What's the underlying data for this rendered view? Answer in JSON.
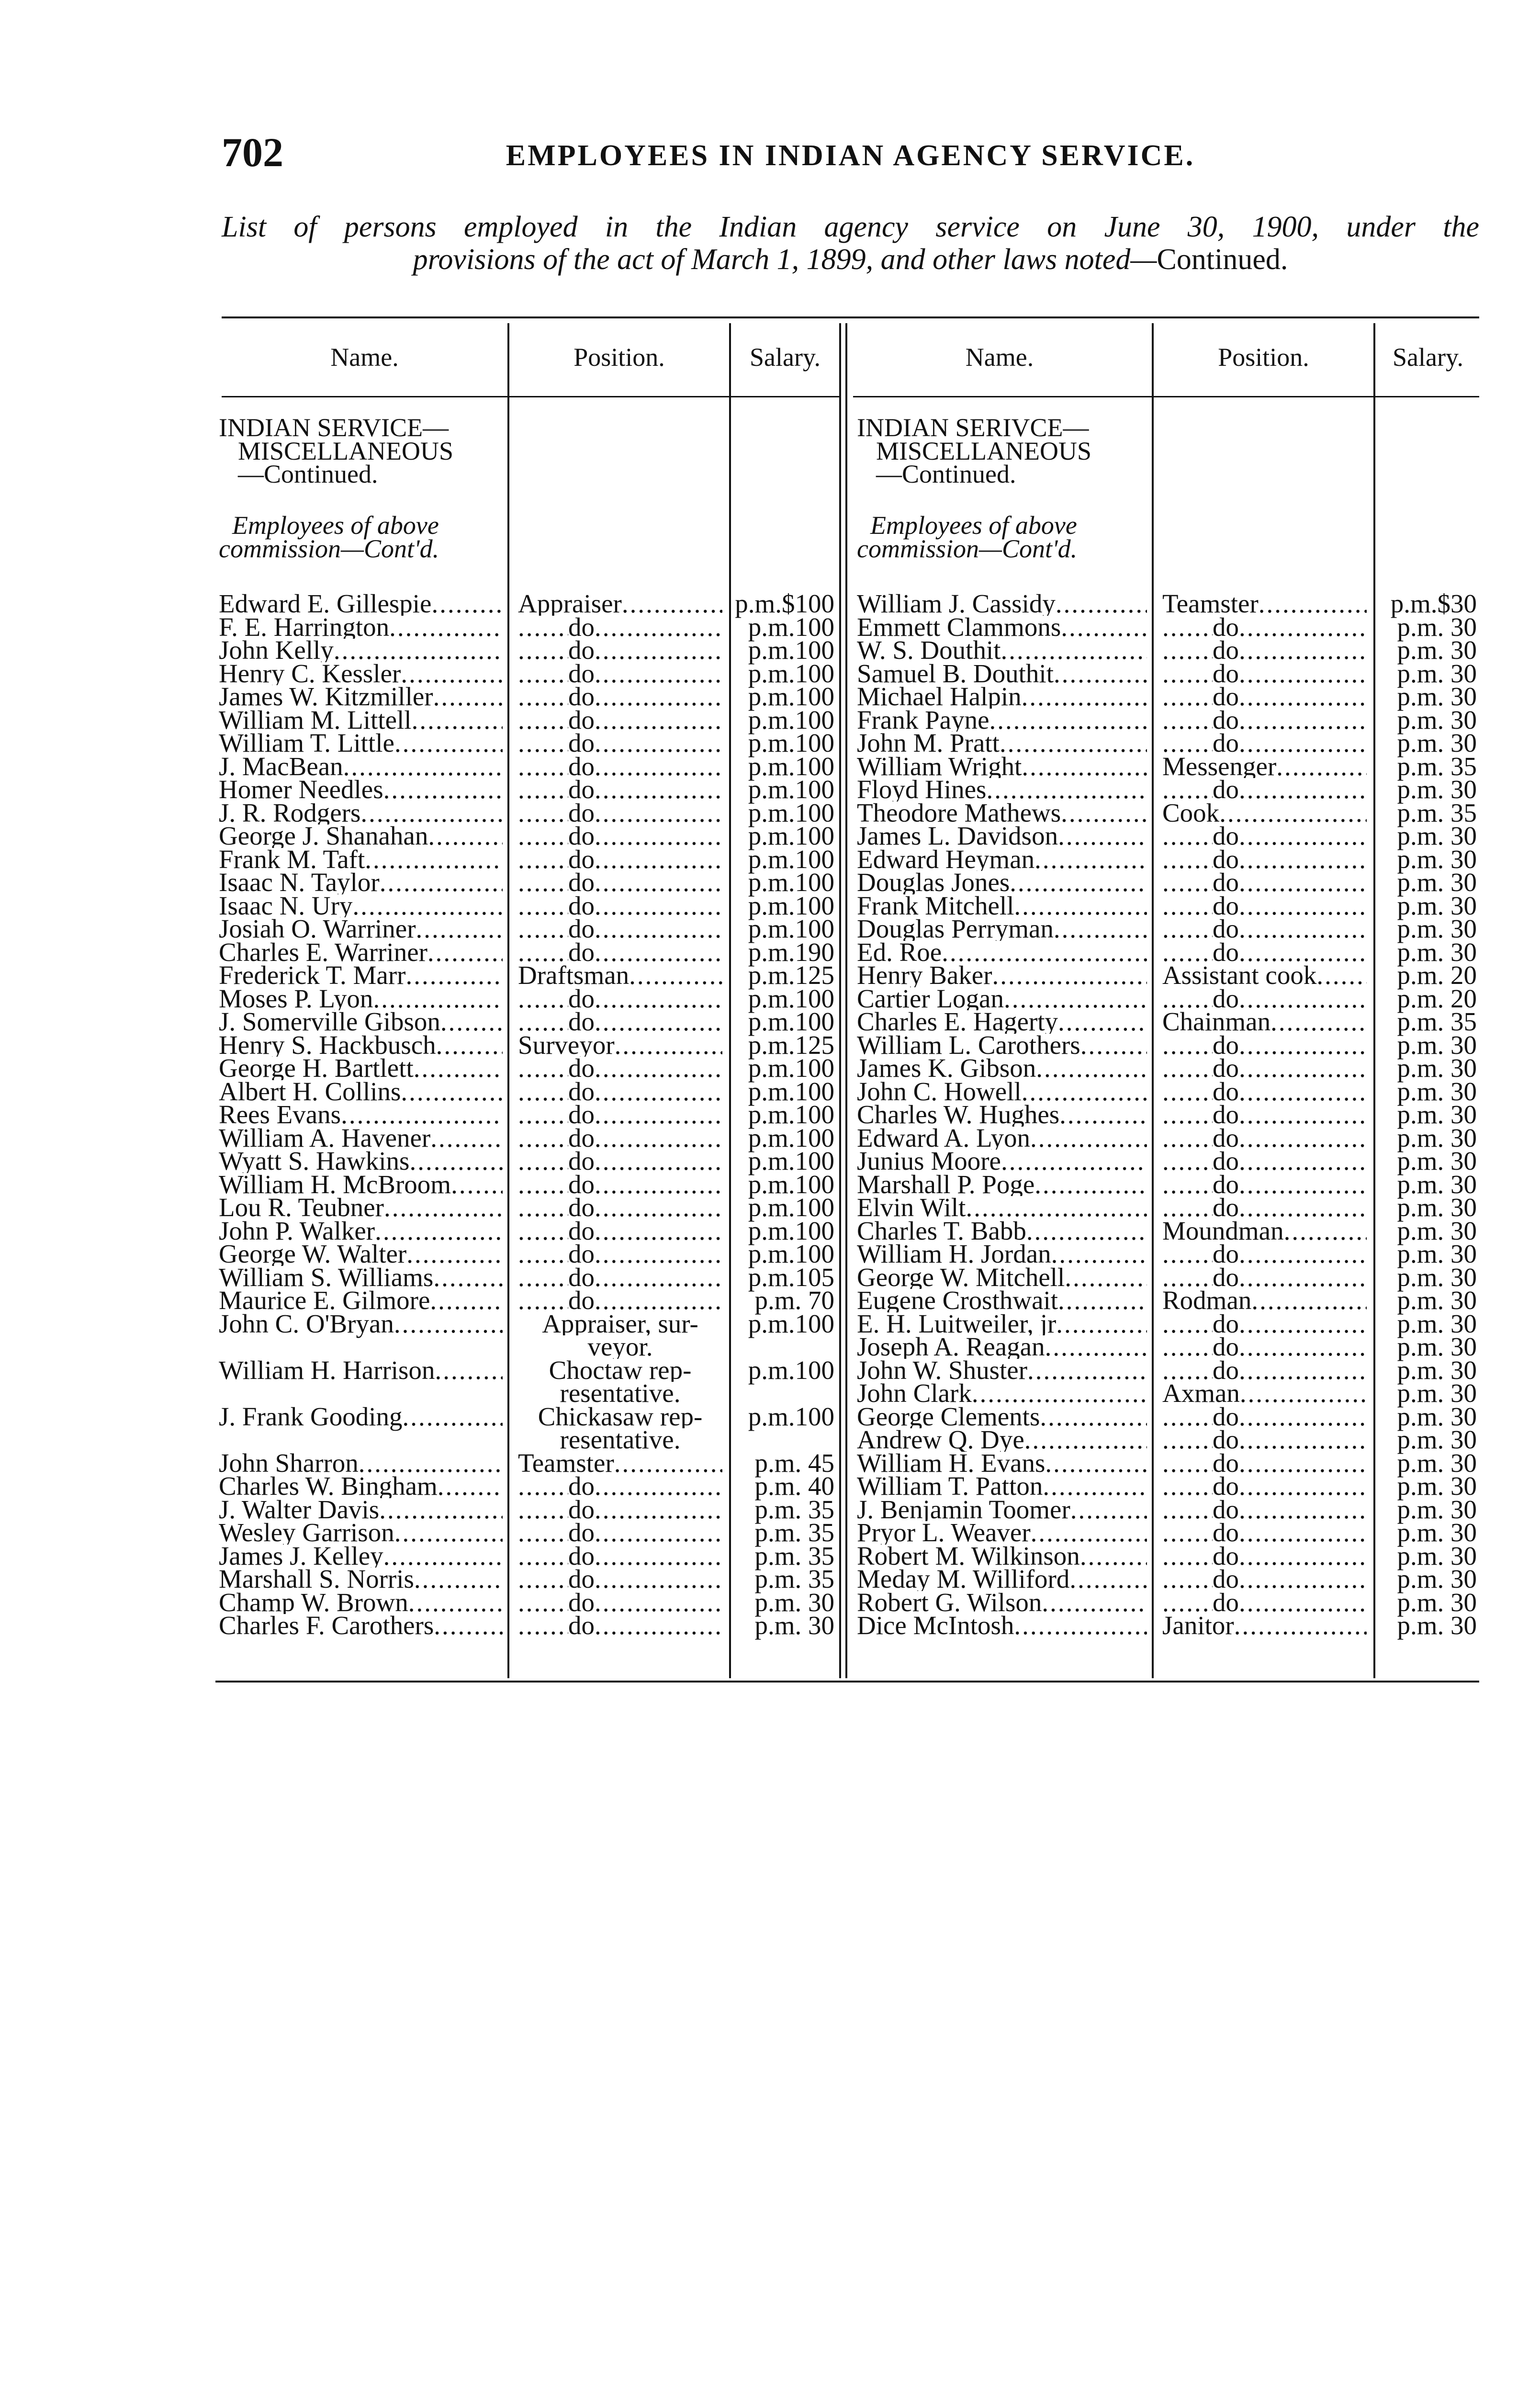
{
  "page_number": "702",
  "running_head": "EMPLOYEES IN INDIAN AGENCY SERVICE.",
  "caption": {
    "line1": "List of persons employed in the Indian agency service on June 30, 1900, under the",
    "line2_italic": "provisions of the act of March 1, 1899, and other laws noted—",
    "line2_roman": "Continued."
  },
  "columns": [
    "Name.",
    "Position.",
    "Salary."
  ],
  "left": {
    "section": [
      "INDIAN SERVICE—",
      "MISCELLANEOUS",
      "—Continued."
    ],
    "subsection": [
      "Employees of above",
      "commission—Cont'd."
    ],
    "rows": [
      {
        "name": "Edward E. Gillespie",
        "position": [
          "Appraiser"
        ],
        "salary": "p.m.$100"
      },
      {
        "name": "F. E. Harrington",
        "position": [
          "do"
        ],
        "salary": "p.m.100"
      },
      {
        "name": "John Kelly",
        "position": [
          "do"
        ],
        "salary": "p.m.100"
      },
      {
        "name": "Henry C. Kessler",
        "position": [
          "do"
        ],
        "salary": "p.m.100"
      },
      {
        "name": "James W. Kitzmiller",
        "position": [
          "do"
        ],
        "salary": "p.m.100"
      },
      {
        "name": "William M. Littell",
        "position": [
          "do"
        ],
        "salary": "p.m.100"
      },
      {
        "name": "William T. Little",
        "position": [
          "do"
        ],
        "salary": "p.m.100"
      },
      {
        "name": "J. MacBean",
        "position": [
          "do"
        ],
        "salary": "p.m.100"
      },
      {
        "name": "Homer Needles",
        "position": [
          "do"
        ],
        "salary": "p.m.100"
      },
      {
        "name": "J. R. Rodgers",
        "position": [
          "do"
        ],
        "salary": "p.m.100"
      },
      {
        "name": "George J. Shanahan",
        "position": [
          "do"
        ],
        "salary": "p.m.100"
      },
      {
        "name": "Frank M. Taft",
        "position": [
          "do"
        ],
        "salary": "p.m.100"
      },
      {
        "name": "Isaac N. Taylor",
        "position": [
          "do"
        ],
        "salary": "p.m.100"
      },
      {
        "name": "Isaac N. Ury",
        "position": [
          "do"
        ],
        "salary": "p.m.100"
      },
      {
        "name": "Josiah O. Warriner",
        "position": [
          "do"
        ],
        "salary": "p.m.100"
      },
      {
        "name": "Charles E. Warriner",
        "position": [
          "do"
        ],
        "salary": "p.m.190"
      },
      {
        "name": "Frederick T. Marr",
        "position": [
          "Draftsman"
        ],
        "salary": "p.m.125"
      },
      {
        "name": "Moses P. Lyon",
        "position": [
          "do"
        ],
        "salary": "p.m.100"
      },
      {
        "name": "J. Somerville Gibson",
        "position": [
          "do"
        ],
        "salary": "p.m.100"
      },
      {
        "name": "Henry S. Hackbusch",
        "position": [
          "Surveyor"
        ],
        "salary": "p.m.125"
      },
      {
        "name": "George H. Bartlett",
        "position": [
          "do"
        ],
        "salary": "p.m.100"
      },
      {
        "name": "Albert H. Collins",
        "position": [
          "do"
        ],
        "salary": "p.m.100"
      },
      {
        "name": "Rees Evans",
        "position": [
          "do"
        ],
        "salary": "p.m.100"
      },
      {
        "name": "William A. Havener",
        "position": [
          "do"
        ],
        "salary": "p.m.100"
      },
      {
        "name": "Wyatt S. Hawkins",
        "position": [
          "do"
        ],
        "salary": "p.m.100"
      },
      {
        "name": "William H. McBroom",
        "position": [
          "do"
        ],
        "salary": "p.m.100"
      },
      {
        "name": "Lou R. Teubner",
        "position": [
          "do"
        ],
        "salary": "p.m.100"
      },
      {
        "name": "John P. Walker",
        "position": [
          "do"
        ],
        "salary": "p.m.100"
      },
      {
        "name": "George W. Walter",
        "position": [
          "do"
        ],
        "salary": "p.m.100"
      },
      {
        "name": "William S. Williams",
        "position": [
          "do"
        ],
        "salary": "p.m.105"
      },
      {
        "name": "Maurice E. Gilmore",
        "position": [
          "do"
        ],
        "salary": "p.m. 70"
      },
      {
        "name": "John C. O'Bryan",
        "position": [
          "Appraiser, sur-",
          "veyor."
        ],
        "salary": "p.m.100"
      },
      {
        "name": "William H. Harrison",
        "position": [
          "Choctaw rep-",
          "resentative."
        ],
        "salary": "p.m.100"
      },
      {
        "name": "J. Frank Gooding",
        "position": [
          "Chickasaw rep-",
          "resentative."
        ],
        "salary": "p.m.100"
      },
      {
        "name": "John Sharron",
        "position": [
          "Teamster"
        ],
        "salary": "p.m. 45"
      },
      {
        "name": "Charles W. Bingham",
        "position": [
          "do"
        ],
        "salary": "p.m. 40"
      },
      {
        "name": "J. Walter Davis",
        "position": [
          "do"
        ],
        "salary": "p.m. 35"
      },
      {
        "name": "Wesley Garrison",
        "position": [
          "do"
        ],
        "salary": "p.m. 35"
      },
      {
        "name": "James J. Kelley",
        "position": [
          "do"
        ],
        "salary": "p.m. 35"
      },
      {
        "name": "Marshall S. Norris",
        "position": [
          "do"
        ],
        "salary": "p.m. 35"
      },
      {
        "name": "Champ W. Brown",
        "position": [
          "do"
        ],
        "salary": "p.m. 30"
      },
      {
        "name": "Charles F. Carothers",
        "position": [
          "do"
        ],
        "salary": "p.m. 30"
      }
    ]
  },
  "right": {
    "section": [
      "INDIAN SERIVCE—",
      "MISCELLANEOUS",
      "—Continued."
    ],
    "subsection": [
      "Employees of above",
      "commission—Cont'd."
    ],
    "rows": [
      {
        "name": "William J. Cassidy",
        "position": [
          "Teamster"
        ],
        "salary": "p.m.$30"
      },
      {
        "name": "Emmett Clammons",
        "position": [
          "do"
        ],
        "salary": "p.m. 30"
      },
      {
        "name": "W. S. Douthit",
        "position": [
          "do"
        ],
        "salary": "p.m. 30"
      },
      {
        "name": "Samuel B. Douthit",
        "position": [
          "do"
        ],
        "salary": "p.m. 30"
      },
      {
        "name": "Michael Halpin",
        "position": [
          "do"
        ],
        "salary": "p.m. 30"
      },
      {
        "name": "Frank Payne",
        "position": [
          "do"
        ],
        "salary": "p.m. 30"
      },
      {
        "name": "John M. Pratt",
        "position": [
          "do"
        ],
        "salary": "p.m. 30"
      },
      {
        "name": "William Wright",
        "position": [
          "Messenger"
        ],
        "salary": "p.m. 35"
      },
      {
        "name": "Floyd Hines",
        "position": [
          "do"
        ],
        "salary": "p.m. 30"
      },
      {
        "name": "Theodore Mathews",
        "position": [
          "Cook"
        ],
        "salary": "p.m. 35"
      },
      {
        "name": "James L. Davidson",
        "position": [
          "do"
        ],
        "salary": "p.m. 30"
      },
      {
        "name": "Edward Heyman",
        "position": [
          "do"
        ],
        "salary": "p.m. 30"
      },
      {
        "name": "Douglas Jones",
        "position": [
          "do"
        ],
        "salary": "p.m. 30"
      },
      {
        "name": "Frank Mitchell",
        "position": [
          "do"
        ],
        "salary": "p.m. 30"
      },
      {
        "name": "Douglas Perryman",
        "position": [
          "do"
        ],
        "salary": "p.m. 30"
      },
      {
        "name": "Ed. Roe",
        "position": [
          "do"
        ],
        "salary": "p.m. 30"
      },
      {
        "name": "Henry Baker",
        "position": [
          "Assistant cook"
        ],
        "salary": "p.m. 20"
      },
      {
        "name": "Cartier Logan",
        "position": [
          "do"
        ],
        "salary": "p.m. 20"
      },
      {
        "name": "Charles E. Hagerty",
        "position": [
          "Chainman"
        ],
        "salary": "p.m. 35"
      },
      {
        "name": "William L. Carothers",
        "position": [
          "do"
        ],
        "salary": "p.m. 30"
      },
      {
        "name": "James K. Gibson",
        "position": [
          "do"
        ],
        "salary": "p.m. 30"
      },
      {
        "name": "John C. Howell",
        "position": [
          "do"
        ],
        "salary": "p.m. 30"
      },
      {
        "name": "Charles W. Hughes",
        "position": [
          "do"
        ],
        "salary": "p.m. 30"
      },
      {
        "name": "Edward A. Lyon",
        "position": [
          "do"
        ],
        "salary": "p.m. 30"
      },
      {
        "name": "Junius Moore",
        "position": [
          "do"
        ],
        "salary": "p.m. 30"
      },
      {
        "name": "Marshall P. Poge",
        "position": [
          "do"
        ],
        "salary": "p.m. 30"
      },
      {
        "name": "Elvin Wilt",
        "position": [
          "do"
        ],
        "salary": "p.m. 30"
      },
      {
        "name": "Charles T. Babb",
        "position": [
          "Moundman"
        ],
        "salary": "p.m. 30"
      },
      {
        "name": "William H. Jordan",
        "position": [
          "do"
        ],
        "salary": "p.m. 30"
      },
      {
        "name": "George W. Mitchell",
        "position": [
          "do"
        ],
        "salary": "p.m. 30"
      },
      {
        "name": "Eugene Crosthwait",
        "position": [
          "Rodman"
        ],
        "salary": "p.m. 30"
      },
      {
        "name": "E. H. Luitweiler, jr",
        "position": [
          "do"
        ],
        "salary": "p.m. 30"
      },
      {
        "name": "Joseph A. Reagan",
        "position": [
          "do"
        ],
        "salary": "p.m. 30"
      },
      {
        "name": "John W. Shuster",
        "position": [
          "do"
        ],
        "salary": "p.m. 30"
      },
      {
        "name": "John Clark",
        "position": [
          "Axman"
        ],
        "salary": "p.m. 30"
      },
      {
        "name": "George Clements",
        "position": [
          "do"
        ],
        "salary": "p.m. 30"
      },
      {
        "name": "Andrew Q. Dye",
        "position": [
          "do"
        ],
        "salary": "p.m. 30"
      },
      {
        "name": "William H. Evans",
        "position": [
          "do"
        ],
        "salary": "p.m. 30"
      },
      {
        "name": "William T. Patton",
        "position": [
          "do"
        ],
        "salary": "p.m. 30"
      },
      {
        "name": "J. Benjamin Toomer",
        "position": [
          "do"
        ],
        "salary": "p.m. 30"
      },
      {
        "name": "Pryor L. Weaver",
        "position": [
          "do"
        ],
        "salary": "p.m. 30"
      },
      {
        "name": "Robert M. Wilkinson",
        "position": [
          "do"
        ],
        "salary": "p.m. 30"
      },
      {
        "name": "Meday M. Williford",
        "position": [
          "do"
        ],
        "salary": "p.m. 30"
      },
      {
        "name": "Robert G. Wilson",
        "position": [
          "do"
        ],
        "salary": "p.m. 30"
      },
      {
        "name": "Dice McIntosh",
        "position": [
          "Janitor"
        ],
        "salary": "p.m. 30"
      }
    ]
  }
}
